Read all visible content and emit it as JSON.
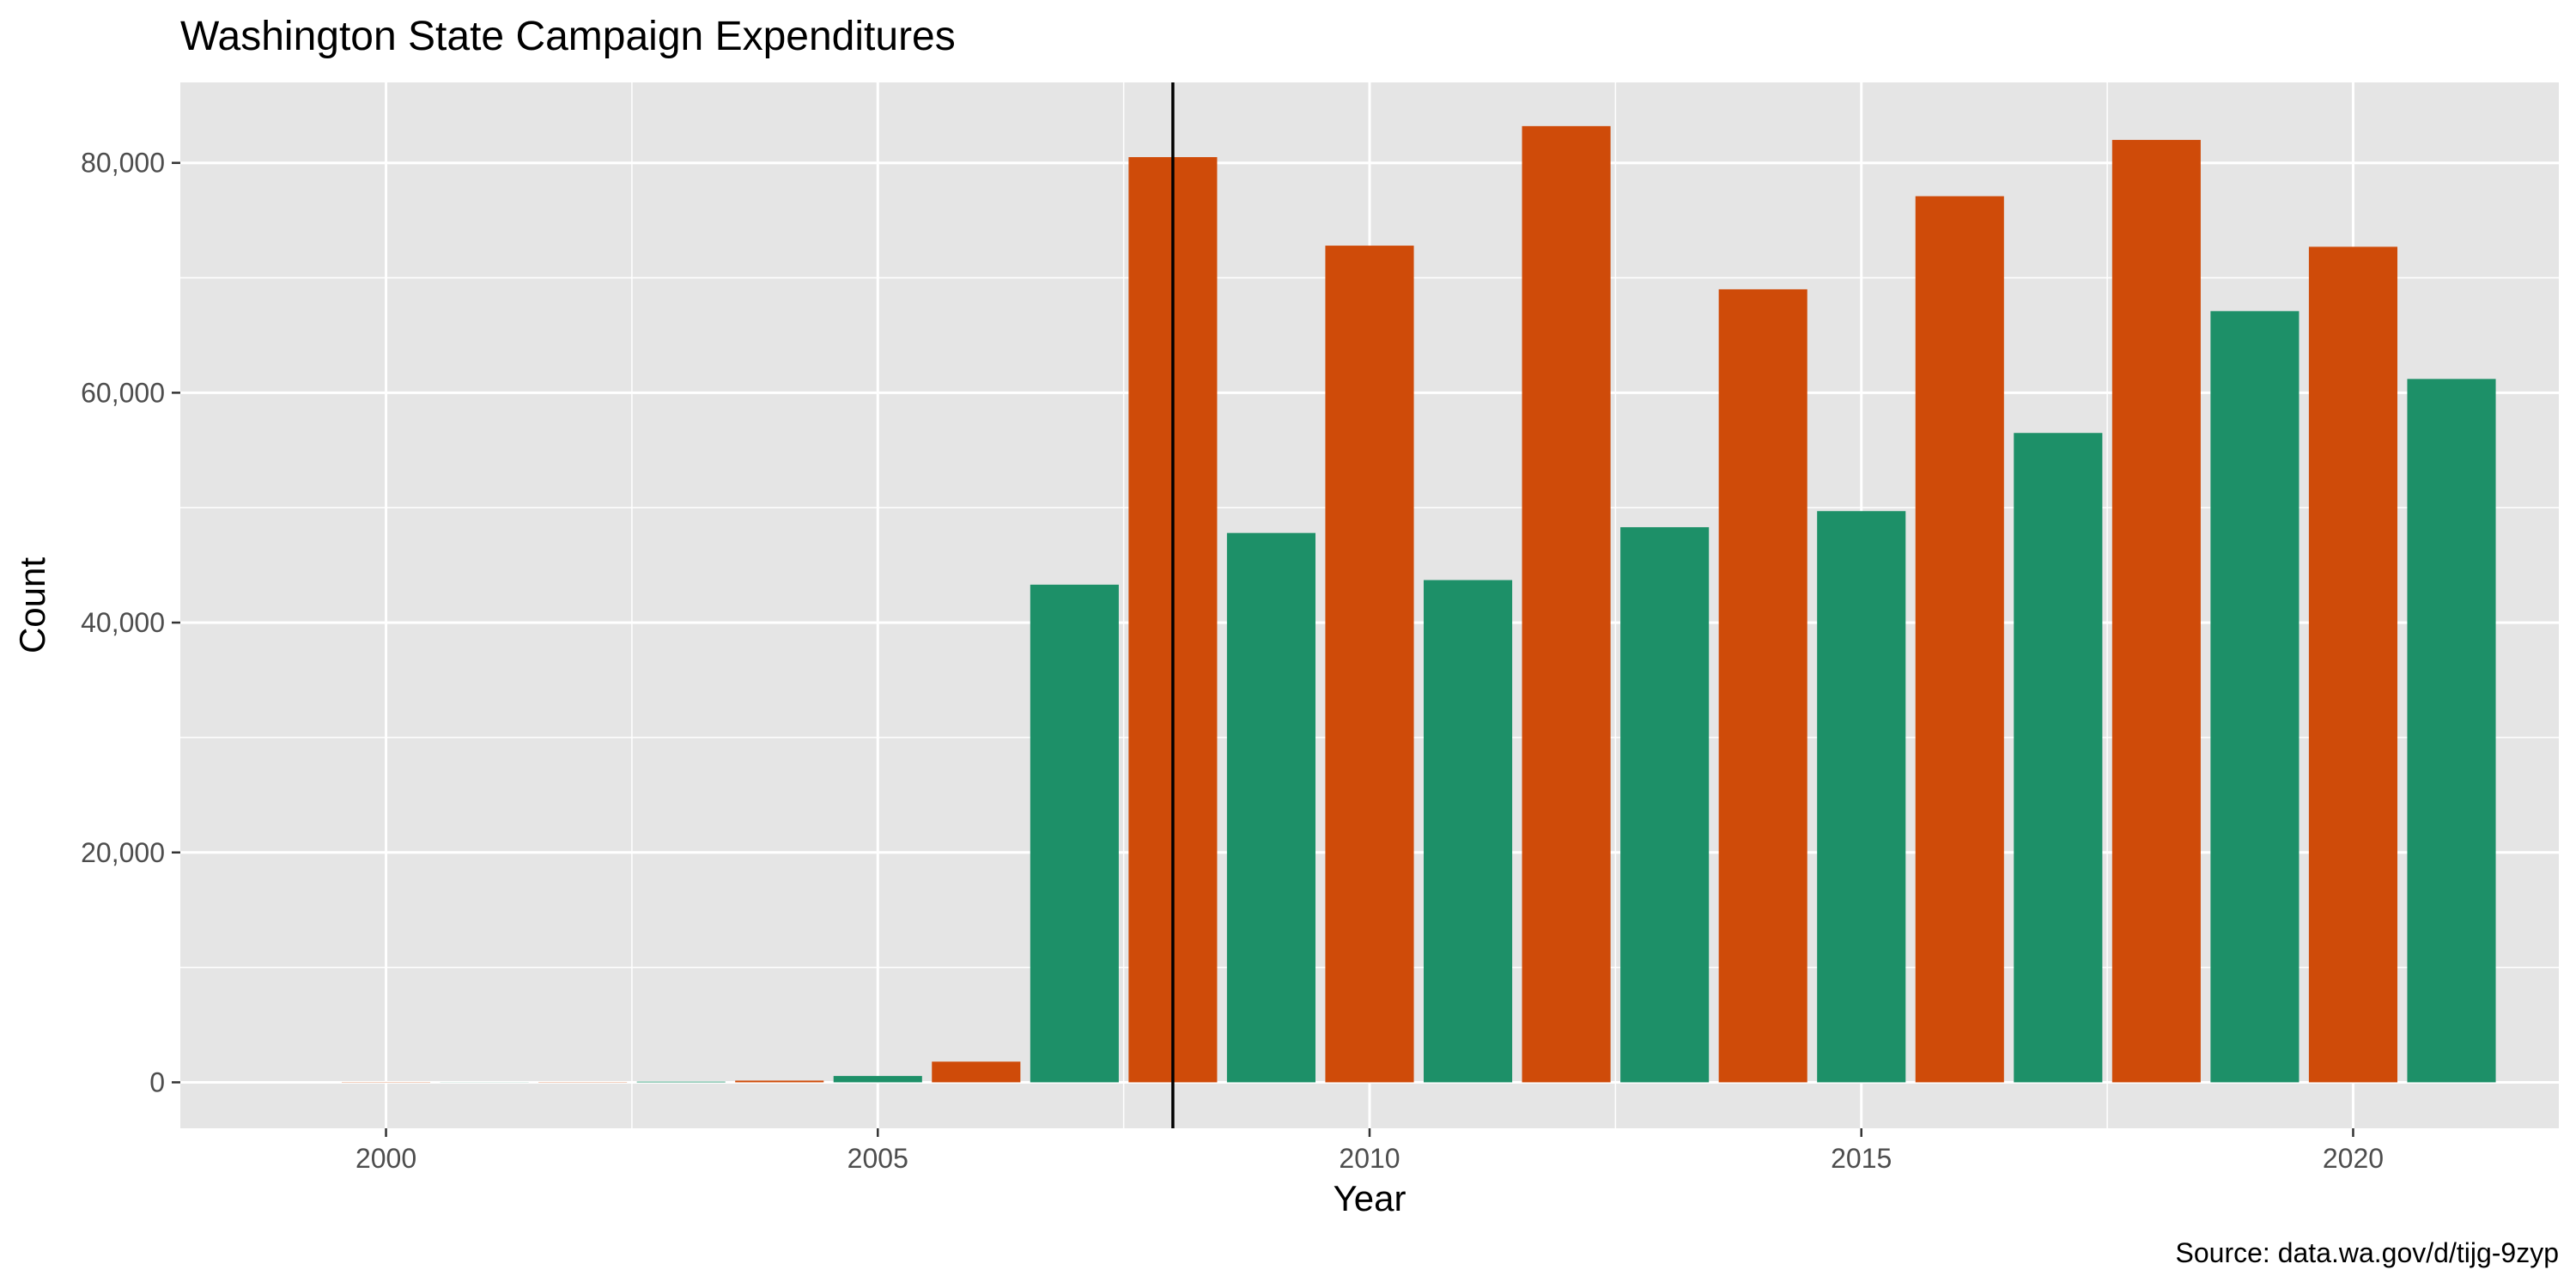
{
  "colors": {
    "panel_background": "#e5e5e5",
    "gridline": "#ffffff",
    "even_year": "#cf4b09",
    "odd_year": "#1d9068",
    "reference_line": "#000000"
  },
  "chart_data": {
    "type": "bar",
    "title": "Washington State Campaign Expenditures",
    "xlabel": "Year",
    "ylabel": "Count",
    "caption": "Source: data.wa.gov/d/tijg-9zyp",
    "xlim": [
      1999,
      2021
    ],
    "ylim": [
      -4000,
      87000
    ],
    "x_ticks": [
      2000,
      2005,
      2010,
      2015,
      2020
    ],
    "x_tick_labels": [
      "2000",
      "2005",
      "2010",
      "2015",
      "2020"
    ],
    "y_ticks": [
      0,
      20000,
      40000,
      60000,
      80000
    ],
    "y_tick_labels": [
      "0",
      "20,000",
      "40,000",
      "60,000",
      "80,000"
    ],
    "grid": true,
    "legend": "none",
    "reference_line_x": 2008,
    "bars": [
      {
        "year": 2000,
        "value": 20,
        "group": "even"
      },
      {
        "year": 2001,
        "value": 10,
        "group": "odd"
      },
      {
        "year": 2002,
        "value": 20,
        "group": "even"
      },
      {
        "year": 2003,
        "value": 60,
        "group": "odd"
      },
      {
        "year": 2004,
        "value": 150,
        "group": "even"
      },
      {
        "year": 2005,
        "value": 550,
        "group": "odd"
      },
      {
        "year": 2006,
        "value": 1800,
        "group": "even"
      },
      {
        "year": 2007,
        "value": 43300,
        "group": "odd"
      },
      {
        "year": 2008,
        "value": 80500,
        "group": "even"
      },
      {
        "year": 2009,
        "value": 47800,
        "group": "odd"
      },
      {
        "year": 2010,
        "value": 72800,
        "group": "even"
      },
      {
        "year": 2011,
        "value": 43700,
        "group": "odd"
      },
      {
        "year": 2012,
        "value": 83200,
        "group": "even"
      },
      {
        "year": 2013,
        "value": 48300,
        "group": "odd"
      },
      {
        "year": 2014,
        "value": 69000,
        "group": "even"
      },
      {
        "year": 2015,
        "value": 49700,
        "group": "odd"
      },
      {
        "year": 2016,
        "value": 77100,
        "group": "even"
      },
      {
        "year": 2017,
        "value": 56500,
        "group": "odd"
      },
      {
        "year": 2018,
        "value": 82000,
        "group": "even"
      },
      {
        "year": 2019,
        "value": 67100,
        "group": "odd"
      },
      {
        "year": 2020,
        "value": 72700,
        "group": "even"
      },
      {
        "year": 2021,
        "value": 61200,
        "group": "odd"
      }
    ]
  }
}
